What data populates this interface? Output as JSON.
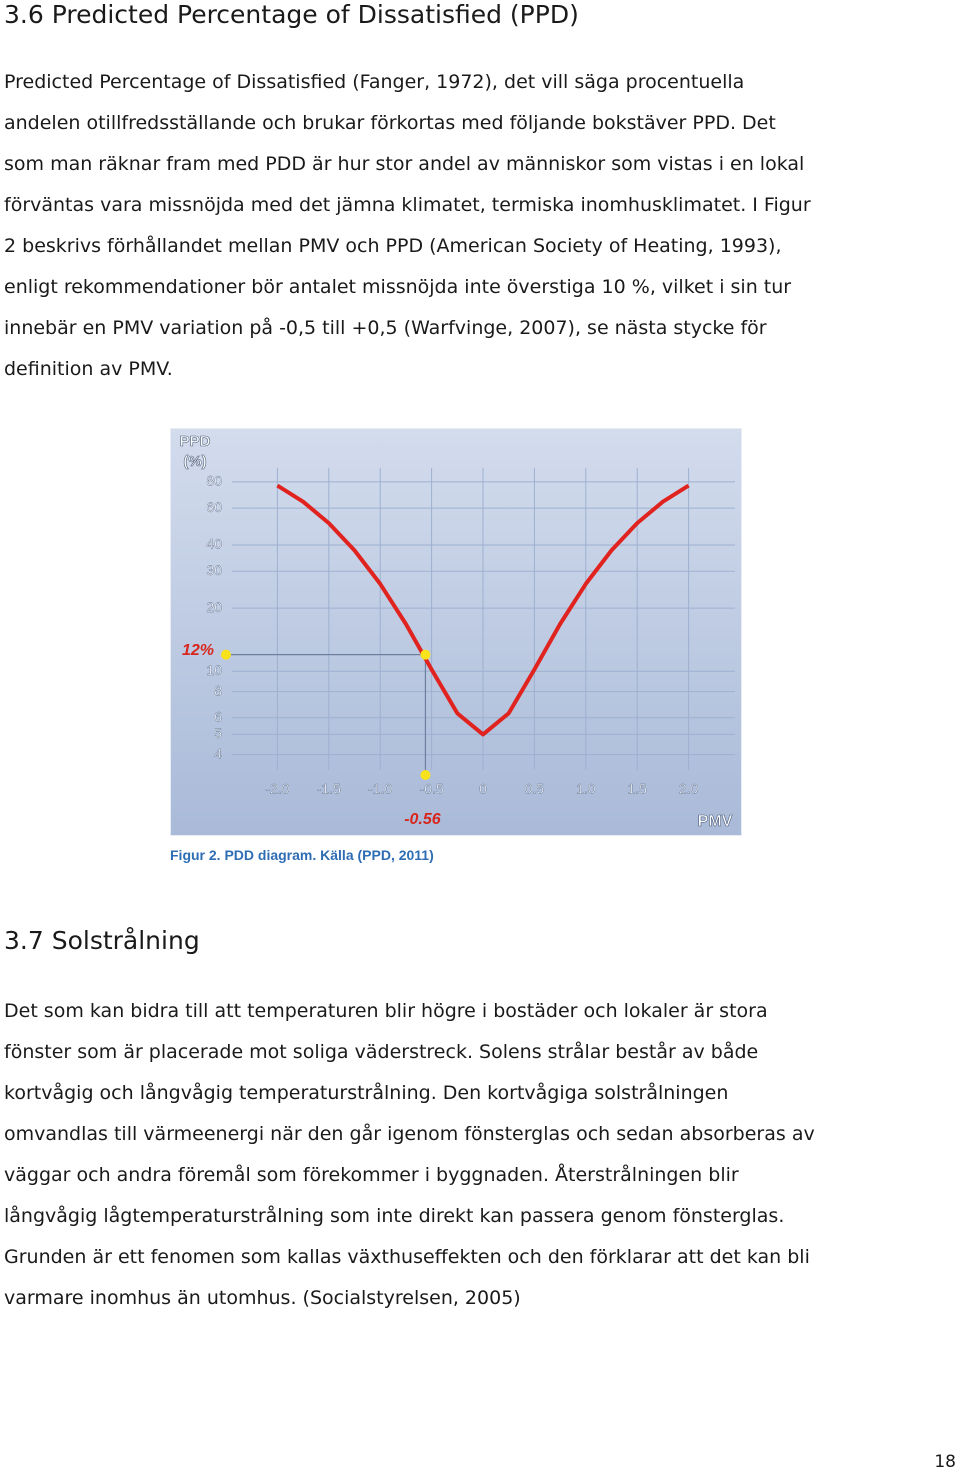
{
  "heading1": "3.6 Predicted Percentage of Dissatisfied (PPD)",
  "paragraph1": [
    "Predicted Percentage of Dissatisfied (Fanger, 1972), det vill säga procentuella",
    "andelen otillfredsställande och brukar förkortas med följande bokstäver PPD. Det",
    "som man räknar fram med PDD är hur stor andel av människor som vistas i en lokal",
    "förväntas vara missnöjda med det jämna klimatet, termiska inomhusklimatet. I Figur",
    "2 beskrivs förhållandet mellan PMV och PPD (American Society of Heating, 1993),",
    "enligt rekommendationer bör antalet missnöjda inte överstiga 10 %, vilket i sin tur",
    "innebär en PMV variation på -0,5 till +0,5 (Warfvinge, 2007), se nästa stycke för",
    "definition av PMV."
  ],
  "figure": {
    "type": "line",
    "y_label_lines": [
      "PPD",
      "(%)"
    ],
    "x_label": "PMV",
    "x": [
      -2,
      -1.75,
      -1.5,
      -1.25,
      -1,
      -0.75,
      -0.5,
      -0.25,
      0,
      0.25,
      0.5,
      0.75,
      1,
      1.25,
      1.5,
      1.75,
      2
    ],
    "values": [
      76.8,
      64.4,
      50.9,
      37.7,
      26.1,
      16.8,
      10.2,
      6.3,
      5,
      6.3,
      10.2,
      16.8,
      26.1,
      37.7,
      50.9,
      64.4,
      76.8
    ],
    "color": "#e0231f",
    "xlim": [
      -2.5,
      2.5
    ],
    "ylim": [
      3.2,
      100
    ],
    "log_y": true,
    "grid": true,
    "xticks": [
      {
        "value": -2,
        "label": "-2.0"
      },
      -1.5,
      {
        "value": -1,
        "label": "-1.0"
      },
      -0.5,
      0,
      0.5,
      {
        "value": 1,
        "label": "1.0"
      },
      1.5,
      {
        "value": 2,
        "label": "2.0"
      }
    ],
    "yticks": [
      80,
      60,
      40,
      30,
      20,
      10,
      8,
      6,
      5,
      4
    ],
    "marker": {
      "x": -0.56,
      "y": 12,
      "y_label": "12%",
      "color": "#f7e21b",
      "label_color": "#d9261c"
    },
    "caption": "Figur 2. PDD diagram. Källa (PPD, 2011)"
  },
  "heading2": "3.7 Solstrålning",
  "paragraph2": [
    "Det som kan bidra till att temperaturen blir högre i bostäder och lokaler är stora",
    "fönster som är placerade mot soliga väderstreck.  Solens strålar består av både",
    "kortvågig och långvågig temperaturstrålning. Den kortvågiga solstrålningen",
    "omvandlas till värmeenergi när den går igenom fönsterglas och sedan absorberas av",
    "väggar och andra föremål som förekommer i byggnaden. Återstrålningen blir",
    "långvågig lågtemperaturstrålning som inte direkt kan passera genom fönsterglas.",
    "Grunden är ett fenomen som kallas växthuseffekten och den förklarar att det kan bli",
    "varmare inomhus än utomhus. (Socialstyrelsen, 2005)"
  ],
  "page_number": "18"
}
